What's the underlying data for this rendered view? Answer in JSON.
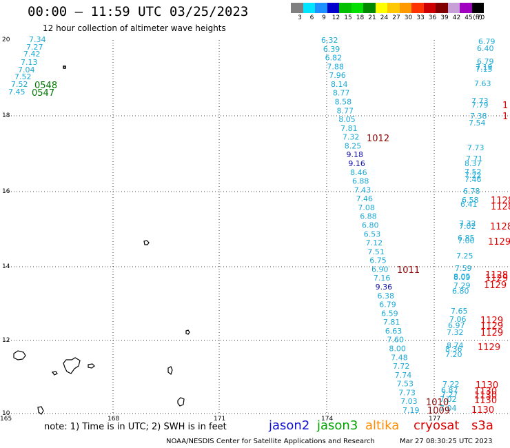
{
  "header": {
    "title": "00:00 – 11:59 UTC 03/25/2023",
    "subtitle": "12 hour collection of altimeter wave heights"
  },
  "legend": {
    "unit": "(ft)",
    "bins": [
      {
        "color": "#808080",
        "label": "3"
      },
      {
        "color": "#00e5ff",
        "label": "6"
      },
      {
        "color": "#1e90ff",
        "label": "9"
      },
      {
        "color": "#0000cd",
        "label": "12"
      },
      {
        "color": "#00c000",
        "label": "15"
      },
      {
        "color": "#00e000",
        "label": "18"
      },
      {
        "color": "#008800",
        "label": "21"
      },
      {
        "color": "#ffff00",
        "label": "24"
      },
      {
        "color": "#ffc800",
        "label": "27"
      },
      {
        "color": "#ff9900",
        "label": "30"
      },
      {
        "color": "#ff3300",
        "label": "33"
      },
      {
        "color": "#cc0000",
        "label": "36"
      },
      {
        "color": "#800000",
        "label": "39"
      },
      {
        "color": "#c8a0d8",
        "label": "42"
      },
      {
        "color": "#a000c0",
        "label": "45"
      },
      {
        "color": "#000000",
        "label": "70"
      }
    ]
  },
  "axes": {
    "lat_ticks": [
      "20",
      "18",
      "16",
      "14",
      "12",
      "10"
    ],
    "lon_ticks": [
      "165",
      "168",
      "171",
      "174",
      "177"
    ]
  },
  "colors": {
    "cyan": "#1ba9d6",
    "blue": "#0a0aa8",
    "green": "#007700",
    "red": "#dd0000",
    "darkred": "#8a0000",
    "orange": "#ff8c00"
  },
  "obs": {
    "track_west": [
      "7.34",
      "7.27",
      "7.42",
      "7.13",
      "7.04",
      "7.52",
      "7.52",
      "7.45"
    ],
    "track_west_times": [
      "0548",
      "0547"
    ],
    "track_mid": [
      "6.32",
      "6.39",
      "6.82",
      "7.88",
      "7.96",
      "8.14",
      "8.77",
      "8.58",
      "8.77",
      "8.05",
      "7.81",
      "7.32",
      "8.25",
      "9.18",
      "9.16",
      "8.46",
      "6.88",
      "7.43",
      "7.46",
      "7.08",
      "6.88",
      "6.80",
      "6.53",
      "7.12",
      "7.51",
      "6.75",
      "6.90",
      "7.16",
      "9.36",
      "6.38",
      "6.79",
      "6.59",
      "7.81",
      "6.63",
      "7.60",
      "8.00",
      "7.48",
      "7.72",
      "7.74",
      "7.53",
      "7.73",
      "7.03",
      "7.19"
    ],
    "time_mid": [
      "1012",
      "1011"
    ],
    "track_east": [
      "6.79",
      "6.40",
      "6.79",
      "7.19",
      "7.15",
      "7.63",
      "7.73",
      "7.79",
      "7.38",
      "7.54",
      "7.73",
      "7.71",
      "8.37",
      "7.52",
      "7.22",
      "7.46",
      "6.78",
      "6.58",
      "6.41",
      "7.32",
      "7.02",
      "6.85",
      "7.00",
      "7.25",
      "7.59",
      "8.05",
      "8.09",
      "7.29",
      "6.80",
      "7.65",
      "7.06",
      "6.97",
      "7.32",
      "8.74",
      "8.36",
      "7.20",
      "7.22",
      "6.87",
      "7.27",
      "7.02",
      "7.04"
    ],
    "time_east": [
      "1128",
      "1128",
      "1128",
      "1129",
      "1128",
      "1129",
      "1129",
      "1129",
      "1129",
      "1129",
      "1129",
      "1130",
      "1130",
      "1130",
      "1130",
      "1130",
      "1010",
      "1009"
    ],
    "edge_partials": [
      "1",
      "1"
    ]
  },
  "footer": {
    "note": "note:  1) Time is in UTC;  2) SWH is in feet",
    "sat_jason2": "jason2",
    "sat_jason3": "jason3",
    "sat_altika": "altika",
    "sat_cryosat": "cryosat",
    "sat_s3a": "s3a",
    "credit": "NOAA/NESDIS Center for Satellite Applications and Research",
    "timestamp": "Mar 27 08:30:25 UTC 2023"
  }
}
